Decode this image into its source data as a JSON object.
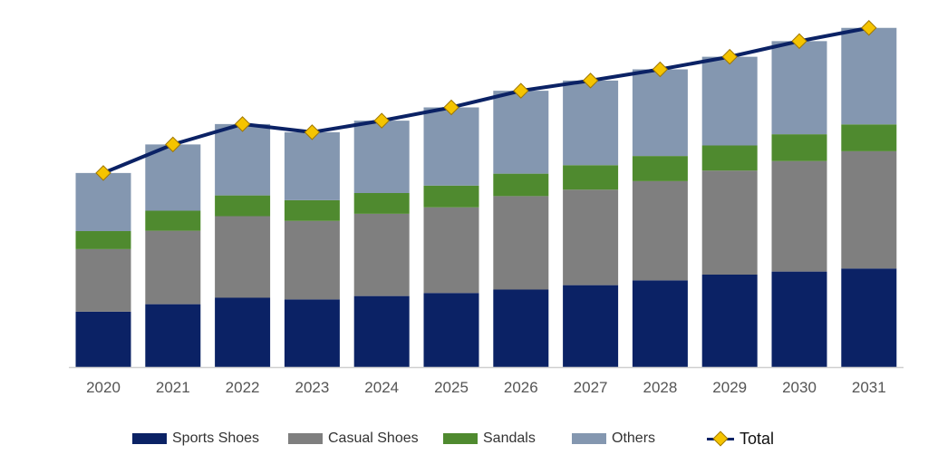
{
  "chart_data": {
    "type": "bar",
    "stacked": true,
    "title": "",
    "xlabel": "",
    "ylabel": "",
    "ylim": [
      0,
      100
    ],
    "grid": false,
    "legend_position": "bottom",
    "categories": [
      "2020",
      "2021",
      "2022",
      "2023",
      "2024",
      "2025",
      "2026",
      "2027",
      "2028",
      "2029",
      "2030",
      "2031"
    ],
    "series": [
      {
        "name": "Sports Shoes",
        "color": "#0b2265",
        "values": [
          16.3,
          18.5,
          20.4,
          19.9,
          20.9,
          21.8,
          22.8,
          24.1,
          25.5,
          27.2,
          28.1,
          29.0
        ]
      },
      {
        "name": "Casual Shoes",
        "color": "#7f7f7f",
        "values": [
          18.4,
          21.6,
          24.0,
          23.1,
          24.2,
          25.2,
          27.5,
          28.1,
          29.2,
          30.6,
          32.5,
          34.5
        ]
      },
      {
        "name": "Sandals",
        "color": "#4f8a2f",
        "values": [
          5.3,
          5.9,
          6.1,
          6.1,
          6.1,
          6.4,
          6.6,
          7.2,
          7.4,
          7.4,
          7.9,
          7.9
        ]
      },
      {
        "name": "Others",
        "color": "#8497b0",
        "values": [
          17.1,
          19.5,
          21.0,
          20.0,
          21.3,
          23.0,
          24.4,
          24.9,
          25.5,
          26.1,
          27.4,
          28.4
        ]
      }
    ],
    "line": {
      "name": "Total",
      "color": "#0b2265",
      "marker_color": "#f5c400",
      "values": [
        57.1,
        65.5,
        71.5,
        69.1,
        72.5,
        76.4,
        81.3,
        84.3,
        87.6,
        91.3,
        95.9,
        99.8
      ]
    }
  }
}
